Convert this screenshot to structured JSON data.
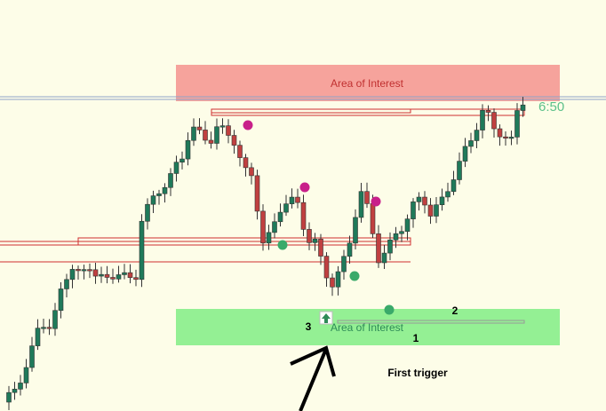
{
  "annotations": {
    "top_zone": "Area of Interest",
    "timer": "6:50",
    "bottom_zone": "Area of Interest",
    "label_3": "3",
    "label_2": "2",
    "label_1": "1",
    "trigger": "First trigger"
  }
}
